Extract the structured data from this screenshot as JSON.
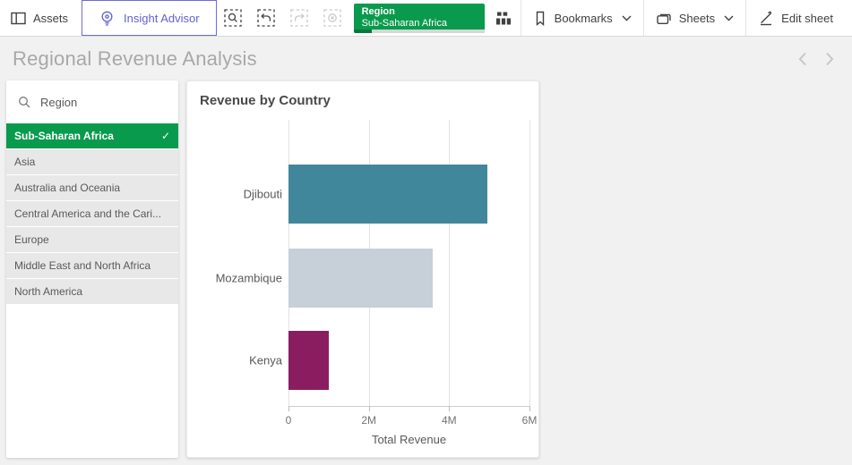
{
  "toolbar": {
    "assets_label": "Assets",
    "insight_advisor_label": "Insight Advisor",
    "selection_chip": {
      "field": "Region",
      "value": "Sub-Saharan Africa",
      "progress_pct": 14
    },
    "bookmarks_label": "Bookmarks",
    "sheets_label": "Sheets",
    "edit_sheet_label": "Edit sheet"
  },
  "sheet": {
    "title": "Regional Revenue Analysis"
  },
  "filter_panel": {
    "field_label": "Region",
    "selected_value": "Sub-Saharan Africa",
    "options": [
      "Asia",
      "Australia and Oceania",
      "Central America and the Cari...",
      "Europe",
      "Middle East and North Africa",
      "North America"
    ]
  },
  "chart_data": {
    "type": "bar",
    "orientation": "horizontal",
    "title": "Revenue by Country",
    "categories": [
      "Djibouti",
      "Mozambique",
      "Kenya"
    ],
    "values": [
      4950000,
      3590000,
      1000000
    ],
    "colors": [
      "#41879c",
      "#c7cfd9",
      "#8a1d60"
    ],
    "xlabel": "Total Revenue",
    "ylabel": "",
    "xlim": [
      0,
      6000000
    ],
    "xticks": [
      {
        "label": "0",
        "value": 0
      },
      {
        "label": "2M",
        "value": 2000000
      },
      {
        "label": "4M",
        "value": 4000000
      },
      {
        "label": "6M",
        "value": 6000000
      }
    ],
    "grid": true,
    "legend": false
  },
  "icons": {
    "checkmark": "✓"
  },
  "colors": {
    "selection_green": "#0a9a4d",
    "progress_green": "#067a3c",
    "insight_purple": "#6c6cdc",
    "page_bg": "#f1f1f2"
  }
}
